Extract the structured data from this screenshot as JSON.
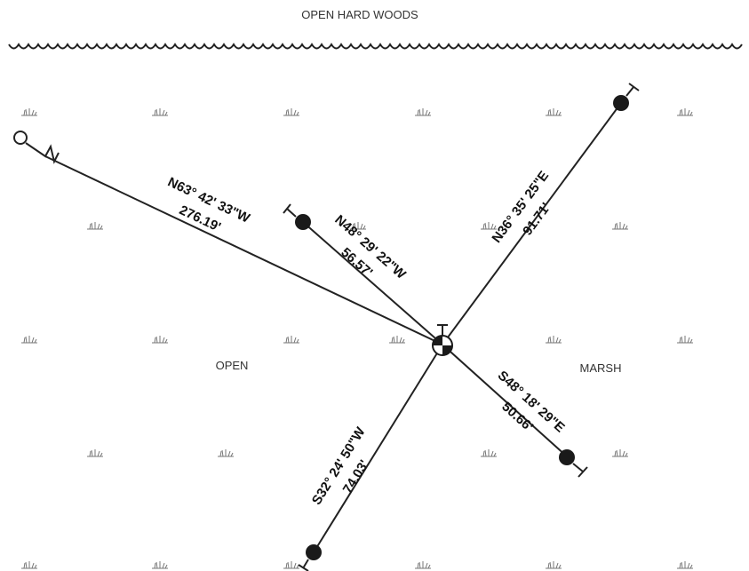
{
  "areas": {
    "top": "OPEN HARD WOODS",
    "left": "OPEN",
    "right": "MARSH"
  },
  "ties": [
    {
      "bearing": "N63° 42' 33\"W",
      "distance": "276.19'"
    },
    {
      "bearing": "N48° 29' 22\"W",
      "distance": "56.57'"
    },
    {
      "bearing": "N36° 35' 25\"E",
      "distance": "91.71'"
    },
    {
      "bearing": "S48° 18' 29\"E",
      "distance": "50.66'"
    },
    {
      "bearing": "S32° 24' 50\"W",
      "distance": "74.03'"
    }
  ],
  "symbols": {
    "control_point": "benchmark-target-icon",
    "tie_point": "filled-circle-icon",
    "origin": "iron-pin-icon",
    "vegetation": "marsh-grass-icon"
  },
  "colors": {
    "ink": "#222222",
    "vegetation": "#777777"
  }
}
